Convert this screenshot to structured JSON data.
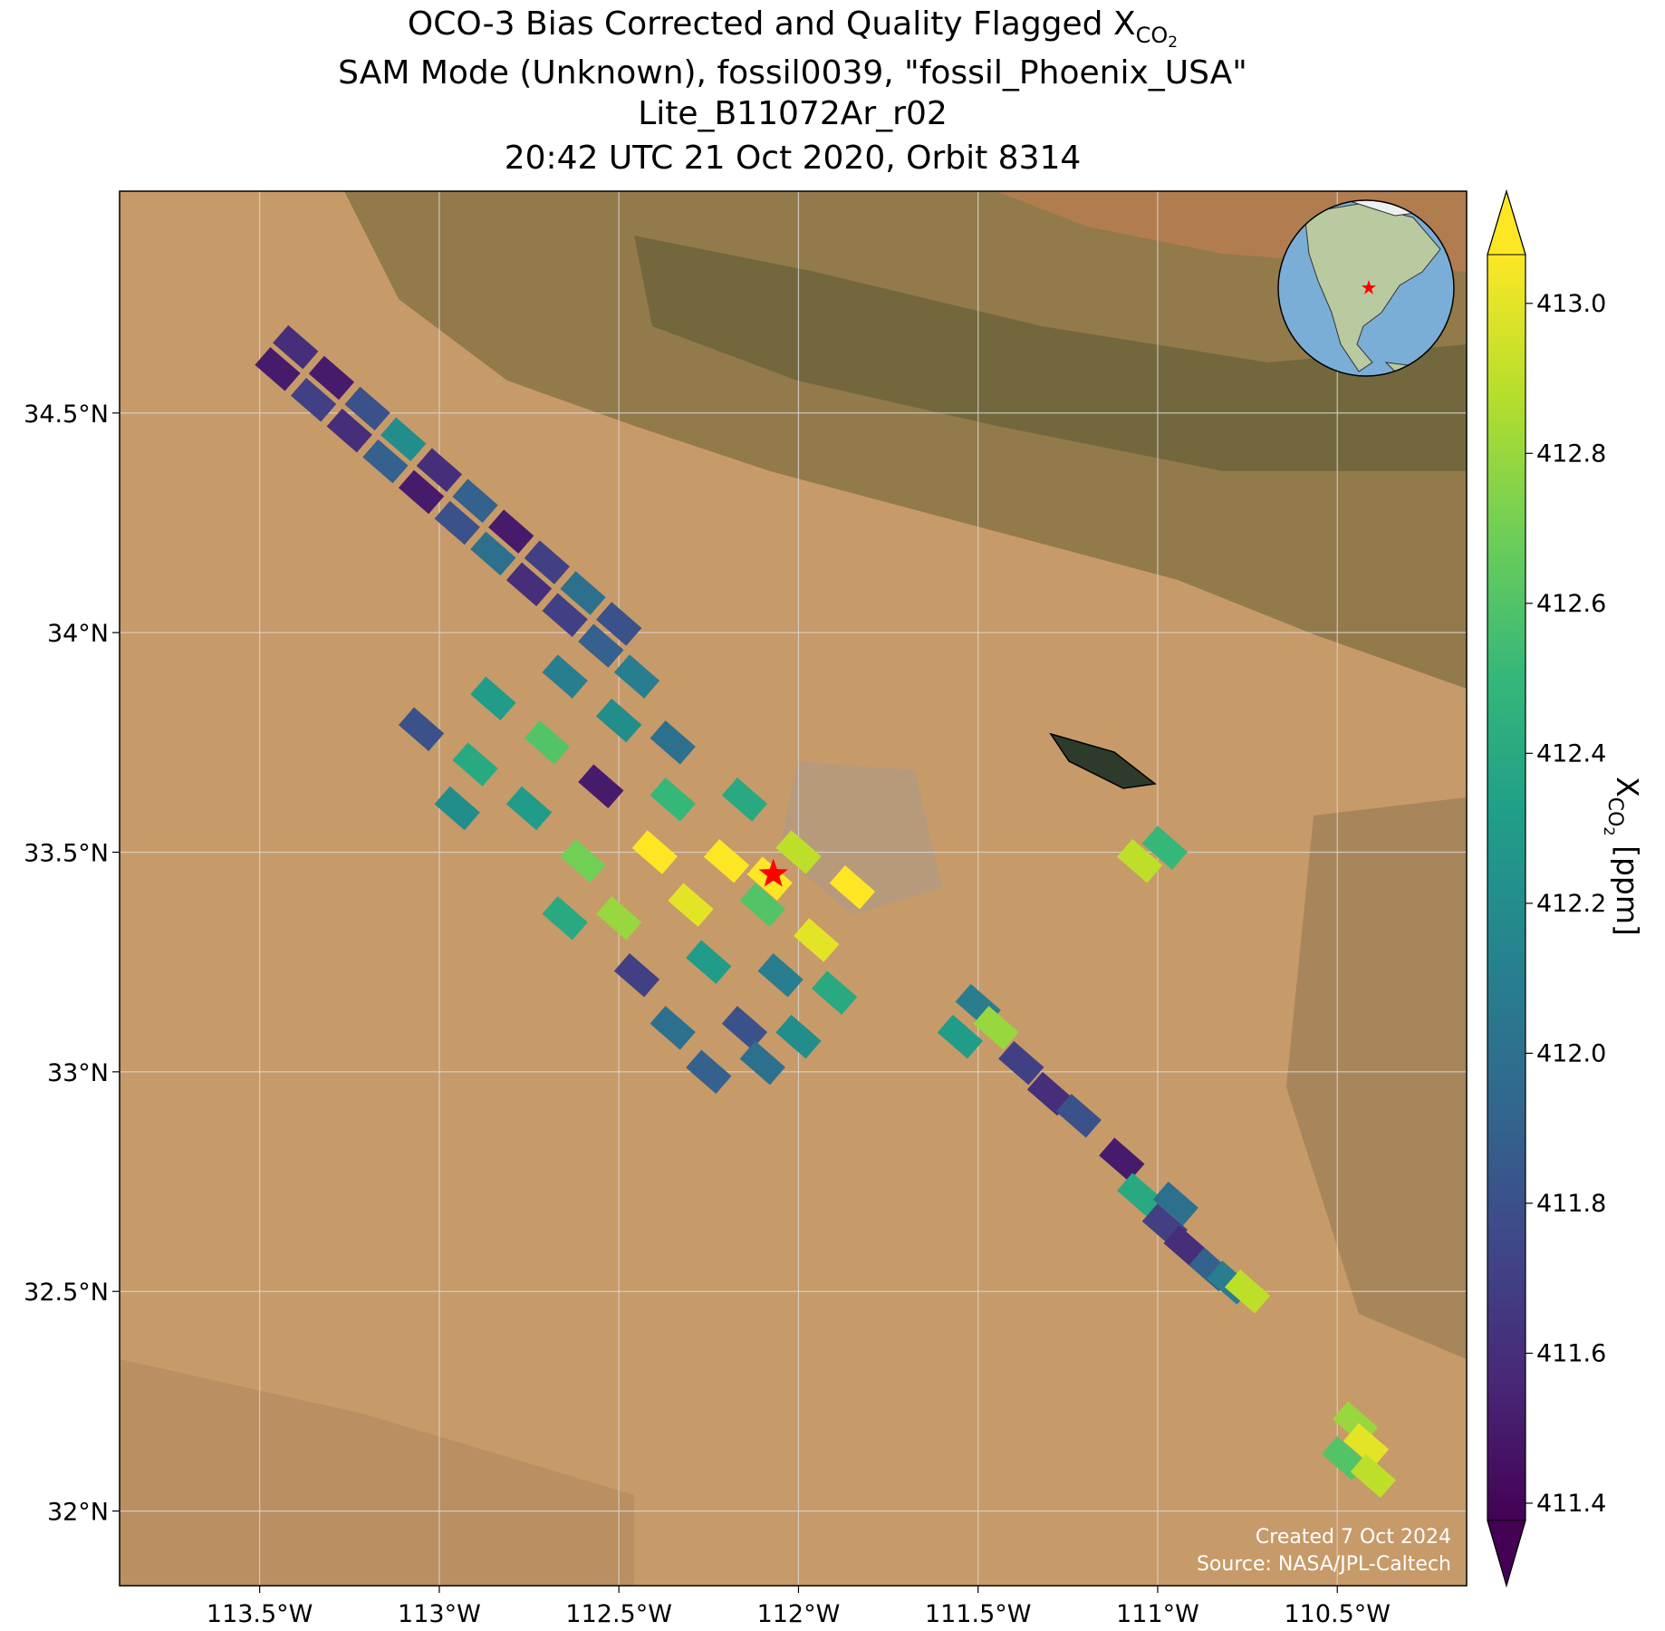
{
  "chart_data": {
    "type": "map",
    "title": "OCO-3 Bias Corrected and Quality Flagged X",
    "title_sub": "CO",
    "title_subsub": "2",
    "subtitle": "SAM Mode (Unknown), fossil0039, \"fossil_Phoenix_USA\"",
    "product": "Lite_B11072Ar_r02",
    "time": "20:42 UTC 21 Oct 2020, Orbit 8314",
    "xlim": [
      -113.89,
      -110.14
    ],
    "ylim": [
      31.83,
      35.005
    ],
    "xticks": [
      {
        "value": -113.5,
        "label": "113.5°W"
      },
      {
        "value": -113,
        "label": "113°W"
      },
      {
        "value": -112.5,
        "label": "112.5°W"
      },
      {
        "value": -112,
        "label": "112°W"
      },
      {
        "value": -111.5,
        "label": "111.5°W"
      },
      {
        "value": -111,
        "label": "111°W"
      },
      {
        "value": -110.5,
        "label": "110.5°W"
      }
    ],
    "yticks": [
      {
        "value": 32,
        "label": "32°N"
      },
      {
        "value": 32.5,
        "label": "32.5°N"
      },
      {
        "value": 33,
        "label": "33°N"
      },
      {
        "value": 33.5,
        "label": "33.5°N"
      },
      {
        "value": 34,
        "label": "34°N"
      },
      {
        "value": 34.5,
        "label": "34.5°N"
      }
    ],
    "grid": true,
    "colorbar_label": "X",
    "colorbar_label_sub": "CO",
    "colorbar_label_subsub": "2",
    "colorbar_label_unit": " [ppm]",
    "clim": [
      411.377,
      413.065
    ],
    "cticks": [
      411.4,
      411.6,
      411.8,
      {
        "value": 412.0,
        "label": "412.0"
      },
      412.2,
      412.4,
      412.6,
      412.8,
      {
        "value": 413.0,
        "label": "413.0"
      }
    ],
    "colormap": [
      "#440154",
      "#482878",
      "#3e4989",
      "#31688e",
      "#26828e",
      "#1f9e89",
      "#35b779",
      "#6ece58",
      "#b5de2b",
      "#fde725"
    ],
    "target": {
      "lon": -112.07,
      "lat": 33.45,
      "color": "#ff0000"
    },
    "soundings": [
      [
        -113.45,
        34.6,
        411.5
      ],
      [
        -113.35,
        34.53,
        411.7
      ],
      [
        -113.25,
        34.46,
        411.6
      ],
      [
        -113.15,
        34.39,
        411.9
      ],
      [
        -113.05,
        34.32,
        411.5
      ],
      [
        -112.95,
        34.25,
        411.8
      ],
      [
        -112.85,
        34.18,
        412.0
      ],
      [
        -112.75,
        34.11,
        411.6
      ],
      [
        -112.65,
        34.04,
        411.7
      ],
      [
        -112.55,
        33.97,
        411.9
      ],
      [
        -112.45,
        33.9,
        412.1
      ],
      [
        -113.4,
        34.65,
        411.6
      ],
      [
        -113.3,
        34.58,
        411.5
      ],
      [
        -113.2,
        34.51,
        411.8
      ],
      [
        -113.1,
        34.44,
        412.2
      ],
      [
        -113.0,
        34.37,
        411.6
      ],
      [
        -112.9,
        34.3,
        411.9
      ],
      [
        -112.8,
        34.23,
        411.5
      ],
      [
        -112.7,
        34.16,
        411.7
      ],
      [
        -112.6,
        34.09,
        412.0
      ],
      [
        -112.5,
        34.02,
        411.8
      ],
      [
        -113.05,
        33.78,
        411.8
      ],
      [
        -112.85,
        33.85,
        412.3
      ],
      [
        -112.65,
        33.9,
        412.1
      ],
      [
        -112.9,
        33.7,
        412.4
      ],
      [
        -112.7,
        33.75,
        412.6
      ],
      [
        -112.5,
        33.8,
        412.2
      ],
      [
        -112.35,
        33.75,
        412.0
      ],
      [
        -112.95,
        33.6,
        412.2
      ],
      [
        -112.75,
        33.6,
        412.3
      ],
      [
        -112.55,
        33.65,
        411.5
      ],
      [
        -112.35,
        33.62,
        412.5
      ],
      [
        -112.15,
        33.62,
        412.4
      ],
      [
        -112.6,
        33.48,
        412.7
      ],
      [
        -112.4,
        33.5,
        413.1
      ],
      [
        -112.2,
        33.48,
        413.1
      ],
      [
        -112.0,
        33.5,
        412.9
      ],
      [
        -111.85,
        33.42,
        413.1
      ],
      [
        -112.5,
        33.35,
        412.8
      ],
      [
        -112.3,
        33.38,
        413.0
      ],
      [
        -112.1,
        33.38,
        412.6
      ],
      [
        -111.95,
        33.3,
        413.0
      ],
      [
        -112.65,
        33.35,
        412.4
      ],
      [
        -112.45,
        33.22,
        411.7
      ],
      [
        -112.25,
        33.25,
        412.3
      ],
      [
        -112.05,
        33.22,
        412.1
      ],
      [
        -111.9,
        33.18,
        412.4
      ],
      [
        -112.35,
        33.1,
        412.0
      ],
      [
        -112.15,
        33.1,
        411.8
      ],
      [
        -112.0,
        33.08,
        412.2
      ],
      [
        -112.25,
        33.0,
        411.9
      ],
      [
        -112.1,
        33.02,
        412.0
      ],
      [
        -112.08,
        33.44,
        413.1
      ],
      [
        -111.55,
        33.08,
        412.3
      ],
      [
        -111.5,
        33.15,
        412.1
      ],
      [
        -111.45,
        33.1,
        412.8
      ],
      [
        -111.38,
        33.02,
        411.7
      ],
      [
        -111.3,
        32.95,
        411.6
      ],
      [
        -111.22,
        32.9,
        411.8
      ],
      [
        -111.05,
        33.48,
        412.9
      ],
      [
        -110.98,
        33.51,
        412.5
      ],
      [
        -111.1,
        32.8,
        411.5
      ],
      [
        -111.05,
        32.72,
        412.4
      ],
      [
        -110.95,
        32.7,
        412.0
      ],
      [
        -110.98,
        32.65,
        411.7
      ],
      [
        -110.92,
        32.6,
        411.6
      ],
      [
        -110.85,
        32.55,
        411.9
      ],
      [
        -110.8,
        32.52,
        412.1
      ],
      [
        -110.75,
        32.5,
        412.9
      ],
      [
        -110.45,
        32.2,
        412.8
      ],
      [
        -110.42,
        32.15,
        413.0
      ],
      [
        -110.48,
        32.12,
        412.6
      ],
      [
        -110.4,
        32.08,
        412.9
      ]
    ],
    "credit_created": "Created 7 Oct 2024",
    "credit_source": "Source: NASA/JPL-Caltech"
  }
}
